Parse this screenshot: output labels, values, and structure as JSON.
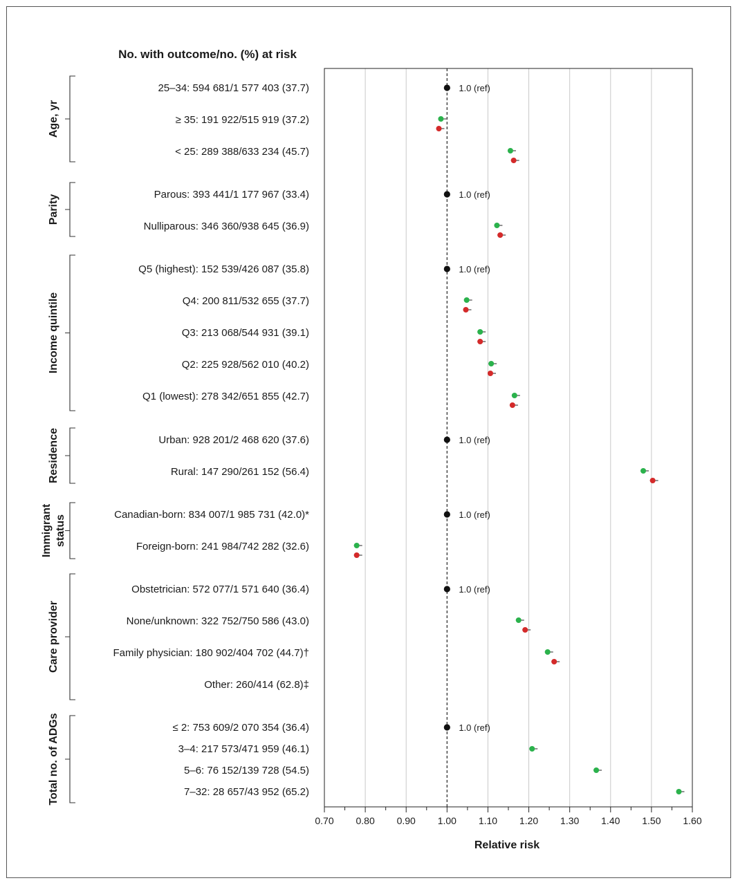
{
  "header": {
    "column_title": "No. with outcome/no. (%) at risk"
  },
  "chart_data": {
    "type": "scatter",
    "title": "",
    "xlabel": "Relative risk",
    "ylabel": "",
    "xlim": [
      0.7,
      1.6
    ],
    "x_ticks": [
      "0.70",
      "0.80",
      "0.90",
      "1.00",
      "1.10",
      "1.20",
      "1.30",
      "1.40",
      "1.50",
      "1.60"
    ],
    "grid": true,
    "reference_line": 1.0,
    "ref_label": "1.0 (ref)",
    "series": [
      {
        "key": "green",
        "color": "#2bb24c"
      },
      {
        "key": "red",
        "color": "#d42a2a"
      }
    ],
    "ref_color": "#111111",
    "groups": [
      {
        "label": [
          "Age, yr"
        ],
        "rows": [
          {
            "label": "25–34: 594 681/1 577 403 (37.7)",
            "ref": true
          },
          {
            "label": "≥ 35: 191 922/515 919 (37.2)",
            "green": 0.985,
            "red": 0.98
          },
          {
            "label": "< 25: 289 388/633 234 (45.7)",
            "green": 1.155,
            "red": 1.163
          }
        ]
      },
      {
        "label": [
          "Parity"
        ],
        "rows": [
          {
            "label": "Parous: 393 441/1 177 967 (33.4)",
            "ref": true
          },
          {
            "label": "Nulliparous: 346 360/938 645 (36.9)",
            "green": 1.122,
            "red": 1.13
          }
        ]
      },
      {
        "label": [
          "Income quintile"
        ],
        "rows": [
          {
            "label": "Q5 (highest): 152 539/426 087 (35.8)",
            "ref": true
          },
          {
            "label": "Q4: 200 811/532 655 (37.7)",
            "green": 1.048,
            "red": 1.046
          },
          {
            "label": "Q3: 213 068/544 931 (39.1)",
            "green": 1.081,
            "red": 1.081
          },
          {
            "label": "Q2: 225 928/562 010 (40.2)",
            "green": 1.108,
            "red": 1.106
          },
          {
            "label": "Q1 (lowest): 278 342/651 855 (42.7)",
            "green": 1.165,
            "red": 1.16
          }
        ]
      },
      {
        "label": [
          "Residence"
        ],
        "rows": [
          {
            "label": "Urban: 928 201/2 468 620 (37.6)",
            "ref": true
          },
          {
            "label": "Rural: 147 290/261 152 (56.4)",
            "green": 1.48,
            "red": 1.503
          }
        ]
      },
      {
        "label": [
          "Immigrant",
          "status"
        ],
        "rows": [
          {
            "label": "Canadian-born: 834 007/1 985 731 (42.0)*",
            "ref": true
          },
          {
            "label": "Foreign-born: 241 984/742 282 (32.6)",
            "green": 0.779,
            "red": 0.779
          }
        ]
      },
      {
        "label": [
          "Care provider"
        ],
        "rows": [
          {
            "label": "Obstetrician: 572 077/1 571 640 (36.4)",
            "ref": true
          },
          {
            "label": "None/unknown: 322 752/750 586 (43.0)",
            "green": 1.175,
            "red": 1.191
          },
          {
            "label": "Family physician: 180 902/404 702 (44.7)†",
            "green": 1.246,
            "red": 1.262
          },
          {
            "label": "Other: 260/414 (62.8)‡"
          }
        ]
      },
      {
        "label": [
          "Total no. of ADGs"
        ],
        "rows": [
          {
            "label": "≤ 2: 753 609/2 070 354 (36.4)",
            "ref": true
          },
          {
            "label": "3–4: 217 573/471 959 (46.1)",
            "green": 1.208
          },
          {
            "label": "5–6: 76 152/139 728 (54.5)",
            "green": 1.365
          },
          {
            "label": "7–32: 28 657/43 952 (65.2)",
            "green": 1.567
          }
        ]
      }
    ]
  }
}
